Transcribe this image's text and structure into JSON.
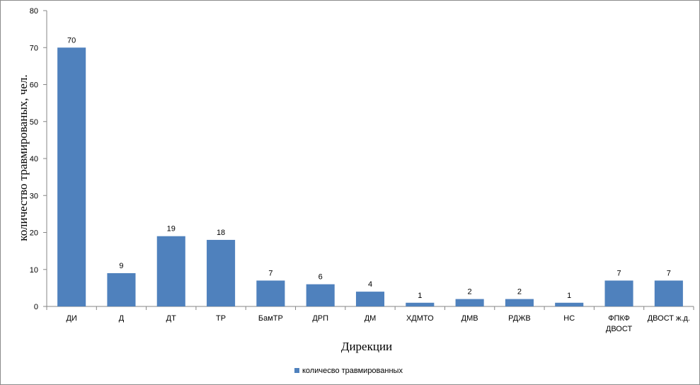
{
  "chart_data": {
    "type": "bar",
    "categories": [
      "ДИ",
      "Д",
      "ДТ",
      "ТР",
      "БамТР",
      "ДРП",
      "ДМ",
      "ХДМТО",
      "ДМВ",
      "РДЖВ",
      "НС",
      "ФПКФ ДВОСТ",
      "ДВОСТ ж.д."
    ],
    "series": [
      {
        "name": "количесво травмированных",
        "values": [
          70,
          9,
          19,
          18,
          7,
          6,
          4,
          1,
          2,
          2,
          1,
          7,
          7
        ]
      }
    ],
    "xlabel": "Дирекции",
    "ylabel": "количество травмированых, чел.",
    "ylim": [
      0,
      80
    ],
    "yticks": [
      0,
      10,
      20,
      30,
      40,
      50,
      60,
      70,
      80
    ],
    "grid": false,
    "legend_position": "bottom",
    "colors": {
      "bar": "#4f81bd",
      "axis": "#868686"
    }
  }
}
